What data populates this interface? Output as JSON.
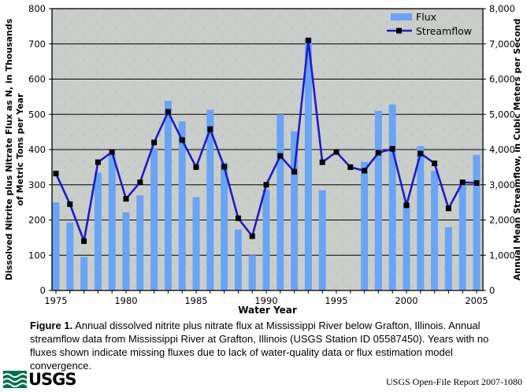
{
  "chart_data": {
    "type": "combo",
    "categories": [
      1975,
      1976,
      1977,
      1978,
      1979,
      1980,
      1981,
      1982,
      1983,
      1984,
      1985,
      1986,
      1987,
      1988,
      1989,
      1990,
      1991,
      1992,
      1993,
      1994,
      1995,
      1996,
      1997,
      1998,
      1999,
      2000,
      2001,
      2002,
      2003,
      2004,
      2005
    ],
    "x_tick_labels": [
      "1975",
      "1980",
      "1985",
      "1990",
      "1995",
      "2000",
      "2005"
    ],
    "xlabel": "Water Year",
    "left_axis": {
      "label_lines": [
        "Dissolved Nitrite plus Nitrate Flux as N, in Thousands",
        "of Metric Tons per Year"
      ],
      "ticks": [
        0,
        100,
        200,
        300,
        400,
        500,
        600,
        700,
        800
      ],
      "tick_labels": [
        "0",
        "100",
        "200",
        "300",
        "400",
        "500",
        "600",
        "700",
        "800"
      ],
      "range": [
        0,
        800
      ]
    },
    "right_axis": {
      "label": "Annual Mean Streamflow, in Cubic Meters per Second",
      "ticks": [
        0,
        1000,
        2000,
        3000,
        4000,
        5000,
        6000,
        7000,
        8000
      ],
      "tick_labels": [
        "0",
        "1,000",
        "2,000",
        "3,000",
        "4,000",
        "5,000",
        "6,000",
        "7,000",
        "8,000"
      ],
      "range": [
        0,
        8000
      ]
    },
    "series": [
      {
        "name": "Flux",
        "type": "bar",
        "axis": "left",
        "values": [
          250,
          193,
          95,
          335,
          385,
          222,
          270,
          405,
          538,
          480,
          265,
          513,
          363,
          173,
          100,
          287,
          500,
          452,
          715,
          285,
          null,
          null,
          365,
          510,
          528,
          245,
          410,
          340,
          180,
          300,
          385
        ]
      },
      {
        "name": "Streamflow",
        "type": "line",
        "axis": "right",
        "values": [
          3320,
          2450,
          1400,
          3640,
          3930,
          2600,
          3070,
          4200,
          5070,
          4270,
          3500,
          4580,
          3510,
          2050,
          1540,
          3000,
          3820,
          3370,
          7100,
          3640,
          3930,
          3500,
          3400,
          3910,
          4020,
          2420,
          3890,
          3610,
          2330,
          3070,
          3050
        ]
      }
    ],
    "grid": "horizontal",
    "legend_position": "top-right"
  },
  "legend": {
    "flux_label": "Flux",
    "streamflow_label": "Streamflow"
  },
  "caption": {
    "label": "Figure 1.",
    "text": " Annual dissolved nitrite plus nitrate flux at Mississippi River below Grafton, Illinois. Annual streamflow data from Mississippi River at Grafton, Illinois (USGS Station ID 05587450). Years with no fluxes shown indicate missing fluxes due to lack of water-quality data or flux estimation model convergence."
  },
  "footer": {
    "logo_text": "USGS",
    "report_text": "USGS Open-File Report 2007-1080"
  },
  "colors": {
    "bar": "#6BA4F5",
    "line": "#1C1CC8",
    "marker": "#000000",
    "plot_bg": "#CACECA",
    "plot_dots": "#AEB2AE",
    "grid": "#000000",
    "usgs_green": "#007150"
  }
}
